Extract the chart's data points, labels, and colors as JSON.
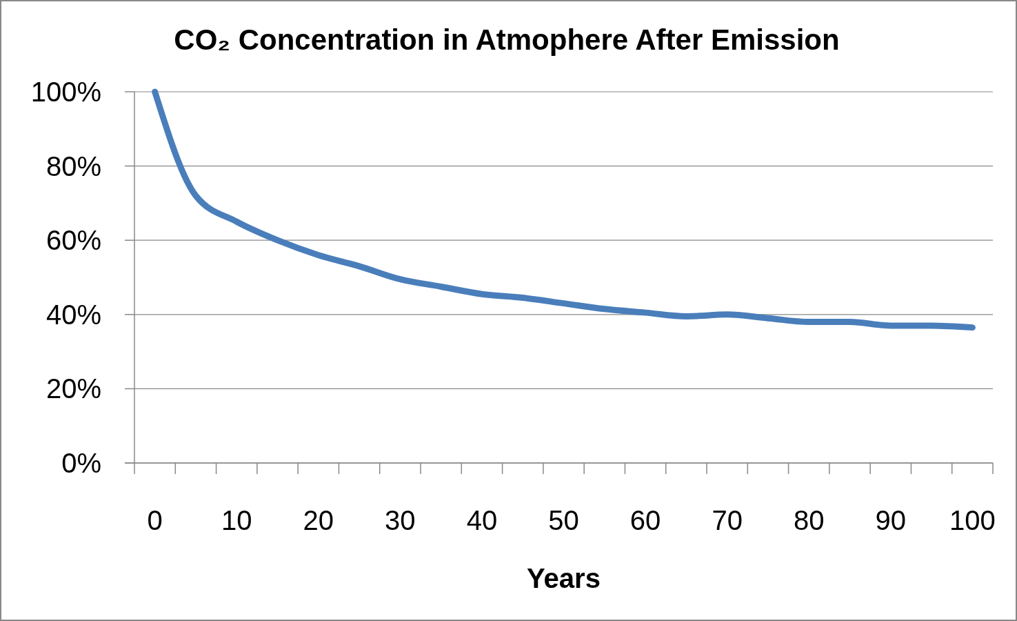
{
  "chart_data": {
    "type": "line",
    "title": "CO₂ Concentration in Atmophere After Emission",
    "xlabel": "Years",
    "categories": [
      "0",
      null,
      "10",
      null,
      "20",
      null,
      "30",
      null,
      "40",
      null,
      "50",
      null,
      "60",
      null,
      "70",
      null,
      "80",
      null,
      "90",
      null,
      "100"
    ],
    "series": [
      {
        "color": "#4a7ebb",
        "values": [
          100,
          72,
          65,
          60,
          56,
          53,
          49.5,
          47.5,
          45.5,
          44.5,
          43,
          41.5,
          40.5,
          39.5,
          40,
          39,
          38,
          38,
          37,
          37,
          36.5
        ]
      }
    ],
    "ylim": [
      0,
      100
    ],
    "yticks": [
      {
        "value": 0,
        "label": "0%"
      },
      {
        "value": 20,
        "label": "20%"
      },
      {
        "value": 40,
        "label": "40%"
      },
      {
        "value": 60,
        "label": "60%"
      },
      {
        "value": 80,
        "label": "80%"
      },
      {
        "value": 100,
        "label": "100%"
      }
    ],
    "grid": "y",
    "marker": "none",
    "line_style": "solid"
  }
}
